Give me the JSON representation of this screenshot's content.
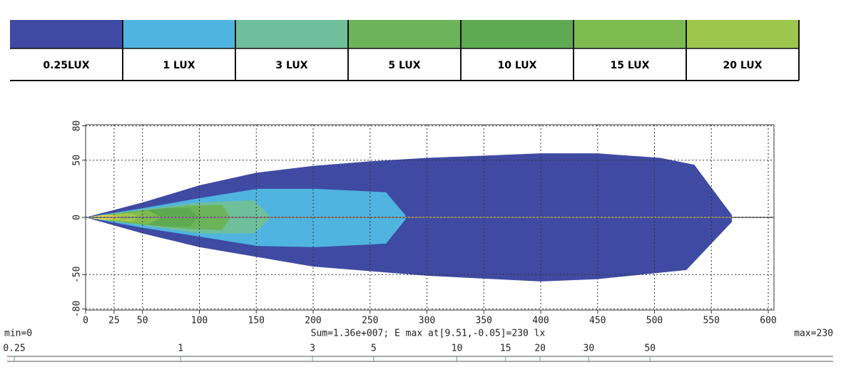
{
  "chart_data": {
    "type": "contour",
    "xlim": [
      0,
      605
    ],
    "ylim": [
      -81,
      81
    ],
    "xticks": [
      0,
      25,
      50,
      100,
      150,
      200,
      250,
      300,
      350,
      400,
      450,
      500,
      550,
      600
    ],
    "yticks": [
      -80,
      -50,
      0,
      50,
      80
    ],
    "grid": true,
    "contours": [
      {
        "name": "0.25LUX",
        "color": "#3f4aa3",
        "x": [
          0,
          50,
          100,
          150,
          200,
          250,
          300,
          400,
          450,
          505,
          535,
          568,
          568,
          528,
          450,
          400,
          300,
          200,
          100,
          50
        ],
        "y": [
          0,
          13,
          28,
          39,
          45,
          49,
          52,
          56,
          56,
          52,
          46,
          2,
          -4,
          -46,
          -54,
          -56,
          -51,
          -43,
          -26,
          -14
        ]
      },
      {
        "name": "1 LUX",
        "color": "#4fb4df",
        "x": [
          0,
          50,
          101,
          151,
          202,
          264,
          281,
          281,
          264,
          202,
          151,
          101,
          50
        ],
        "y": [
          0,
          8,
          17,
          25,
          25,
          22,
          2,
          -2,
          -23,
          -26,
          -25,
          -17,
          -9
        ]
      },
      {
        "name": "3 LUX",
        "color": "#6fbf9b",
        "x": [
          0,
          50,
          101,
          148,
          161,
          161,
          148,
          101,
          50
        ],
        "y": [
          0,
          7,
          13,
          15,
          2,
          -2,
          -14,
          -14,
          -7
        ]
      },
      {
        "name": "5 LUX",
        "color": "#6cb35a",
        "x": [
          0,
          50,
          88,
          120,
          126,
          126,
          120,
          88,
          50
        ],
        "y": [
          0,
          6,
          10,
          11,
          2,
          -2,
          -11,
          -10,
          -6
        ]
      },
      {
        "name": "10 LUX",
        "color": "#5eaa52",
        "x": [
          0,
          40,
          70,
          92,
          98,
          98,
          92,
          70,
          40
        ],
        "y": [
          0,
          5,
          8,
          8,
          1,
          -1,
          -8,
          -8,
          -5
        ]
      },
      {
        "name": "15 LUX",
        "color": "#7dbb4f",
        "x": [
          0,
          35,
          55,
          65,
          65,
          55,
          35
        ],
        "y": [
          0,
          4,
          6,
          1,
          -1,
          -6,
          -4
        ]
      },
      {
        "name": "20 LUX",
        "color": "#9dc64c",
        "x": [
          0,
          25,
          40,
          46,
          46,
          40,
          25
        ],
        "y": [
          0,
          3,
          4,
          1,
          -1,
          -4,
          -3
        ]
      },
      {
        "color": "#e6dc48",
        "x": [
          0,
          15,
          30,
          30,
          15
        ],
        "y": [
          0,
          2,
          1,
          -1,
          -2
        ]
      }
    ],
    "stats": {
      "min_label": "min=0",
      "summary": "Sum=1.36e+007; E max at[9.51,-0.05]=230 lx",
      "max_label": "max=230"
    },
    "scale_bar": {
      "log": true,
      "lim": [
        0.25,
        230
      ],
      "ticks": [
        0.25,
        1,
        3,
        5,
        10,
        15,
        20,
        30,
        50
      ]
    }
  }
}
